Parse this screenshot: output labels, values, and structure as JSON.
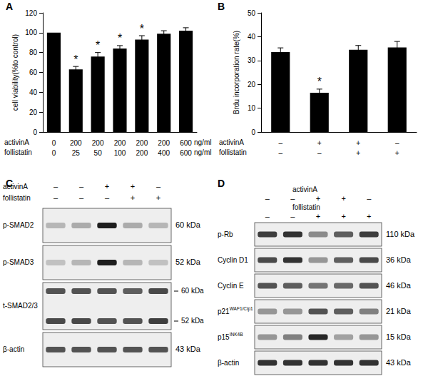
{
  "chart_data": [
    {
      "type": "bar",
      "title": "A",
      "x_rows": [
        {
          "name": "activinA",
          "labels": [
            "0",
            "200",
            "200",
            "200",
            "200",
            "200",
            "600"
          ]
        },
        {
          "name": "follistatin",
          "labels": [
            "0",
            "25",
            "50",
            "100",
            "200",
            "400",
            "600"
          ]
        }
      ],
      "x_unit": "ng/ml",
      "values": [
        100,
        63,
        76,
        84,
        93,
        99,
        102
      ],
      "errors": [
        0,
        3,
        4,
        3,
        4,
        3,
        3
      ],
      "annotations": [
        {
          "index": 1,
          "text": "*"
        },
        {
          "index": 2,
          "text": "*"
        },
        {
          "index": 3,
          "text": "*"
        },
        {
          "index": 4,
          "text": "*"
        }
      ],
      "ylabel": "cell viability(%to control)",
      "ylim": [
        0,
        120
      ],
      "yticks": [
        0,
        20,
        40,
        60,
        80,
        100,
        120
      ],
      "color": "#000000",
      "grid": false
    },
    {
      "type": "bar",
      "title": "B",
      "x_rows": [
        {
          "name": "activinA",
          "labels": [
            "–",
            "+",
            "+",
            "–"
          ]
        },
        {
          "name": "follistatin",
          "labels": [
            "–",
            "–",
            "+",
            "+"
          ]
        }
      ],
      "values": [
        33.5,
        16.5,
        34.5,
        35.5
      ],
      "errors": [
        1.8,
        1.5,
        1.8,
        2.5
      ],
      "annotations": [
        {
          "index": 1,
          "text": "*"
        }
      ],
      "ylabel": "Brdu incorporation rate(%)",
      "ylim": [
        0,
        50
      ],
      "yticks": [
        0,
        10,
        20,
        30,
        40,
        50
      ],
      "color": "#000000",
      "grid": false
    },
    {
      "type": "western_blot",
      "title": "C",
      "conditions": [
        {
          "name": "activinA",
          "signs": [
            "–",
            "–",
            "+",
            "+",
            "–"
          ]
        },
        {
          "name": "follistatin",
          "signs": [
            "–",
            "–",
            "–",
            "+",
            "+"
          ]
        }
      ],
      "rows": [
        {
          "label": "p-SMAD2",
          "bands": [
            {
              "kda": "60 kDa",
              "intensity": [
                0.25,
                0.3,
                0.95,
                0.3,
                0.25
              ]
            }
          ]
        },
        {
          "label": "p-SMAD3",
          "bands": [
            {
              "kda": "52 kDa",
              "intensity": [
                0.2,
                0.25,
                0.95,
                0.25,
                0.2
              ]
            }
          ]
        },
        {
          "label": "t-SMAD2/3",
          "bands": [
            {
              "kda": "60 kDa",
              "intensity": [
                0.7,
                0.7,
                0.7,
                0.65,
                0.75
              ]
            },
            {
              "kda": "52 kDa",
              "intensity": [
                0.75,
                0.75,
                0.7,
                0.7,
                0.8
              ]
            }
          ]
        },
        {
          "label": "β-actin",
          "bands": [
            {
              "kda": "43 kDa",
              "intensity": [
                0.7,
                0.7,
                0.7,
                0.7,
                0.7
              ]
            }
          ]
        }
      ]
    },
    {
      "type": "western_blot",
      "title": "D",
      "conditions": [
        {
          "name": "activinA",
          "signs": [
            "–",
            "–",
            "+",
            "+",
            "–"
          ]
        },
        {
          "name": "follistatin",
          "signs": [
            "–",
            "–",
            "+",
            "+",
            "+"
          ]
        }
      ],
      "rows": [
        {
          "label": "p-Rb",
          "bands": [
            {
              "kda": "110 kDa",
              "intensity": [
                0.8,
                0.85,
                0.45,
                0.65,
                0.8
              ]
            }
          ]
        },
        {
          "label": "Cyclin D1",
          "bands": [
            {
              "kda": "36 kDa",
              "intensity": [
                0.75,
                0.85,
                0.4,
                0.65,
                0.75
              ]
            }
          ]
        },
        {
          "label": "Cyclin E",
          "bands": [
            {
              "kda": "46 kDa",
              "intensity": [
                0.7,
                0.65,
                0.55,
                0.6,
                0.7
              ]
            }
          ]
        },
        {
          "label": "p21",
          "label_sup": "WAF1/Cip1",
          "bands": [
            {
              "kda": "21 kDa",
              "intensity": [
                0.4,
                0.4,
                0.7,
                0.65,
                0.5
              ]
            }
          ]
        },
        {
          "label": "p15",
          "label_sup": "INK4B",
          "bands": [
            {
              "kda": "15 kDa",
              "intensity": [
                0.4,
                0.5,
                0.9,
                0.35,
                0.4
              ]
            }
          ]
        },
        {
          "label": "β-actin",
          "bands": [
            {
              "kda": "43 kDa",
              "intensity": [
                0.85,
                0.85,
                0.85,
                0.85,
                0.85
              ]
            }
          ]
        }
      ]
    }
  ]
}
